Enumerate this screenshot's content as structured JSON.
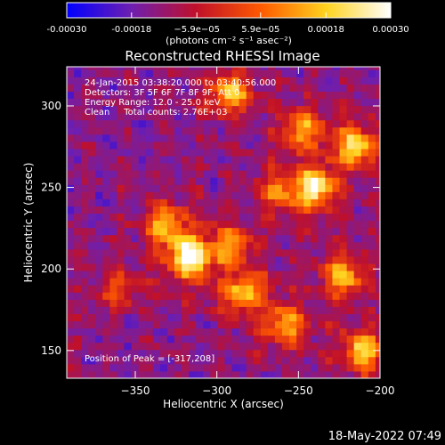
{
  "chart_data": {
    "type": "heatmap",
    "title": "Reconstructed RHESSI Image",
    "xlabel": "Heliocentric X (arcsec)",
    "ylabel": "Heliocentric Y (arcsec)",
    "xlim": [
      -392,
      -200
    ],
    "ylim": [
      133,
      324
    ],
    "x_ticks": [
      -350,
      -300,
      -250,
      -200
    ],
    "x_tick_labels": [
      "−350",
      "−300",
      "−250",
      "−200"
    ],
    "y_ticks": [
      150,
      200,
      250,
      300
    ],
    "y_tick_labels": [
      "150",
      "200",
      "250",
      "300"
    ],
    "colorbar": {
      "range": [
        -0.0003,
        0.0003
      ],
      "ticks": [
        -0.0003,
        -0.00018,
        -5.9e-05,
        5.9e-05,
        0.00018,
        0.0003
      ],
      "tick_labels": [
        "-0.00030",
        "-0.00018",
        "−5.9e−05",
        "5.9e−05",
        "0.00018",
        "0.00030"
      ],
      "units_label": "(photons cm⁻² s⁻¹ asec⁻²)",
      "colors": [
        "#0000ff",
        "#6e1fb0",
        "#c0102a",
        "#ff5a00",
        "#ffd21e",
        "#ffffff"
      ]
    },
    "annotations": [
      "24-Jan-2015 03:38:20.000 to 03:40:56.000",
      "Detectors: 3F 5F 6F 7F 8F 9F, Att 0",
      "Energy Range: 12.0 - 25.0 keV",
      "Clean     Total counts: 2.76E+03"
    ],
    "peak_label": "Position of Peak = [-317,208]",
    "peak": [
      -317,
      208
    ],
    "sources": [
      {
        "x": -317,
        "y": 208,
        "amp": 1.0
      },
      {
        "x": -332,
        "y": 227,
        "amp": 0.55
      },
      {
        "x": -283,
        "y": 185,
        "amp": 0.62
      },
      {
        "x": -292,
        "y": 214,
        "amp": 0.5
      },
      {
        "x": -258,
        "y": 166,
        "amp": 0.6
      },
      {
        "x": -240,
        "y": 250,
        "amp": 0.85
      },
      {
        "x": -215,
        "y": 275,
        "amp": 0.75
      },
      {
        "x": -248,
        "y": 286,
        "amp": 0.55
      },
      {
        "x": -292,
        "y": 308,
        "amp": 0.7
      },
      {
        "x": -223,
        "y": 196,
        "amp": 0.62
      },
      {
        "x": -210,
        "y": 150,
        "amp": 0.7
      },
      {
        "x": -262,
        "y": 248,
        "amp": 0.45
      },
      {
        "x": -360,
        "y": 188,
        "amp": 0.35
      }
    ]
  },
  "footer": {
    "timestamp": "18-May-2022 07:49"
  }
}
